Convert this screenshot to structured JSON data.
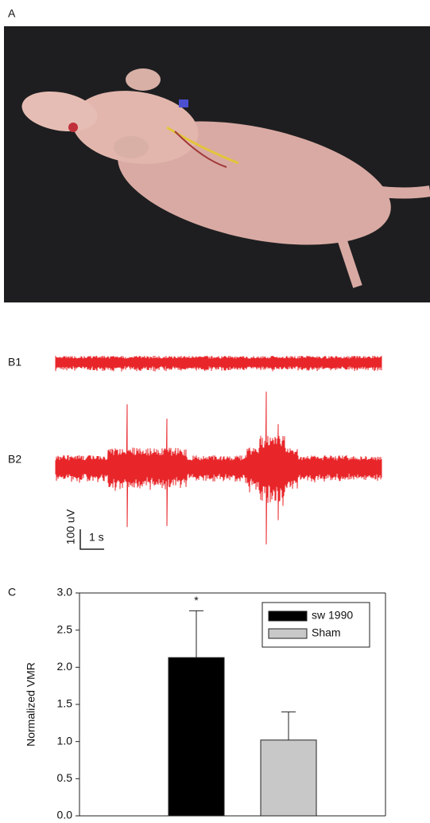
{
  "panel_labels": {
    "a": "A",
    "b1": "B1",
    "b2": "B2",
    "c": "C"
  },
  "scale_bar": {
    "amplitude": "100 uV",
    "time": "1 s"
  },
  "chart_data": {
    "type": "bar",
    "y_label": "Normalized VMR",
    "annotation": "*",
    "categories": [
      null
    ],
    "series": [
      {
        "name": "sw 1990",
        "color": "#000000",
        "values": [
          2.13
        ],
        "errors": [
          0.63
        ]
      },
      {
        "name": "Sham",
        "color": "#c8c8c8",
        "values": [
          1.02
        ],
        "errors": [
          0.38
        ]
      }
    ],
    "ylim": [
      0,
      3
    ],
    "yticks": [
      {
        "value": 0,
        "label": "0.0"
      },
      {
        "value": 0.5,
        "label": "0.5"
      },
      {
        "value": 1,
        "label": "1.0"
      },
      {
        "value": 1.5,
        "label": "1.5"
      },
      {
        "value": 2,
        "label": "2.0"
      },
      {
        "value": 2.5,
        "label": "2.5"
      },
      {
        "value": 3,
        "label": "3.0"
      }
    ],
    "legend": "upper right"
  }
}
